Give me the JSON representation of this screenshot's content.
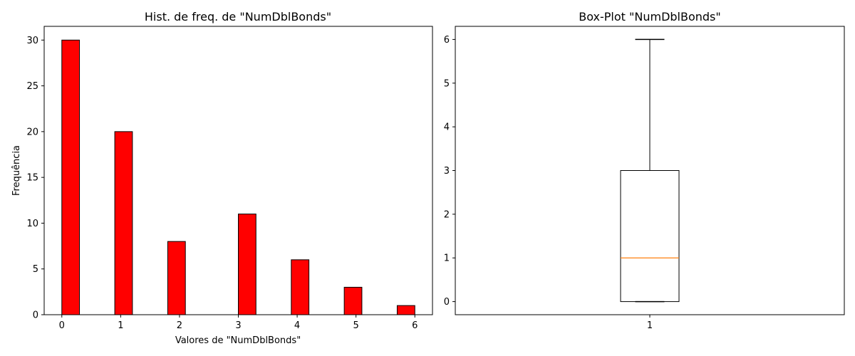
{
  "chart_data": [
    {
      "type": "bar",
      "title": "Hist. de freq. de \"NumDblBonds\"",
      "xlabel": "Valores de \"NumDblBonds\"",
      "ylabel": "Frequência",
      "bins": [
        {
          "start": 0.0,
          "end": 0.3,
          "count": 30
        },
        {
          "start": 0.9,
          "end": 1.2,
          "count": 20
        },
        {
          "start": 1.8,
          "end": 2.1,
          "count": 8
        },
        {
          "start": 3.0,
          "end": 3.3,
          "count": 11
        },
        {
          "start": 3.9,
          "end": 4.2,
          "count": 6
        },
        {
          "start": 4.8,
          "end": 5.1,
          "count": 3
        },
        {
          "start": 5.7,
          "end": 6.0,
          "count": 1
        }
      ],
      "xlim": [
        -0.3,
        6.3
      ],
      "ylim": [
        0,
        31.5
      ],
      "xticks": [
        0,
        1,
        2,
        3,
        4,
        5,
        6
      ],
      "yticks": [
        0,
        5,
        10,
        15,
        20,
        25,
        30
      ],
      "bar_color": "#ff0000",
      "edge_color": "#000000",
      "grid": false
    },
    {
      "type": "box",
      "title": "Box-Plot \"NumDblBonds\"",
      "categories": [
        "1"
      ],
      "stats": {
        "min": 0,
        "q1": 0,
        "median": 1,
        "q3": 3,
        "max": 6
      },
      "xlim": [
        0.5,
        1.5
      ],
      "ylim": [
        -0.3,
        6.3
      ],
      "yticks": [
        0,
        1,
        2,
        3,
        4,
        5,
        6
      ],
      "median_color": "#ff7f0e",
      "grid": false
    }
  ]
}
